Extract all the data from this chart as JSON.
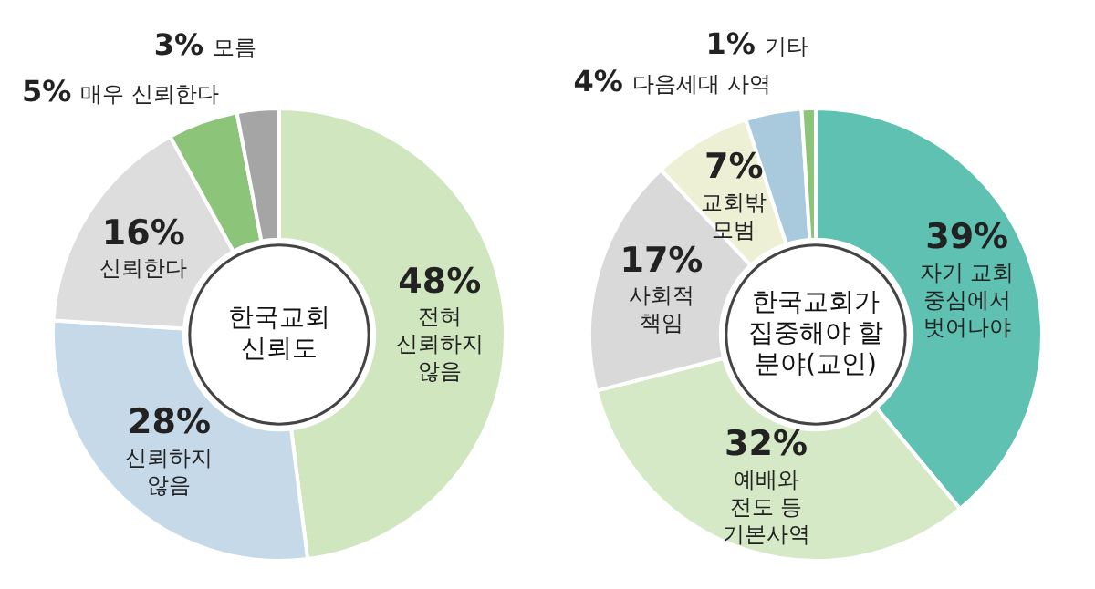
{
  "chart_data": [
    {
      "type": "donut",
      "title": "한국교회 신뢰도",
      "categories": [
        "전혀 신뢰하지 않음",
        "신뢰하지 않음",
        "신뢰한다",
        "매우 신뢰한다",
        "모름"
      ],
      "values": [
        48,
        28,
        16,
        5,
        3
      ],
      "value_labels": [
        "48%",
        "28%",
        "16%",
        "5%",
        "3%"
      ],
      "colors": [
        "#cfe6bf",
        "#c6d9e8",
        "#dddddd",
        "#8cc47a",
        "#a5a5a5"
      ],
      "legend": false
    },
    {
      "type": "donut",
      "title": "한국교회가 집중해야 할 분야(교인)",
      "categories": [
        "자기 교회 중심에서 벗어나야",
        "예배와 전도 등 기본사역",
        "사회적 책임",
        "교회밖 모범",
        "다음세대 사역",
        "기타"
      ],
      "values": [
        39,
        32,
        17,
        7,
        4,
        1
      ],
      "value_labels": [
        "39%",
        "32%",
        "17%",
        "7%",
        "4%",
        "1%"
      ],
      "colors": [
        "#5fc1b2",
        "#d5e9c6",
        "#d9d9d9",
        "#eef0d6",
        "#a9c9dd",
        "#8cc47a"
      ],
      "legend": false
    }
  ]
}
